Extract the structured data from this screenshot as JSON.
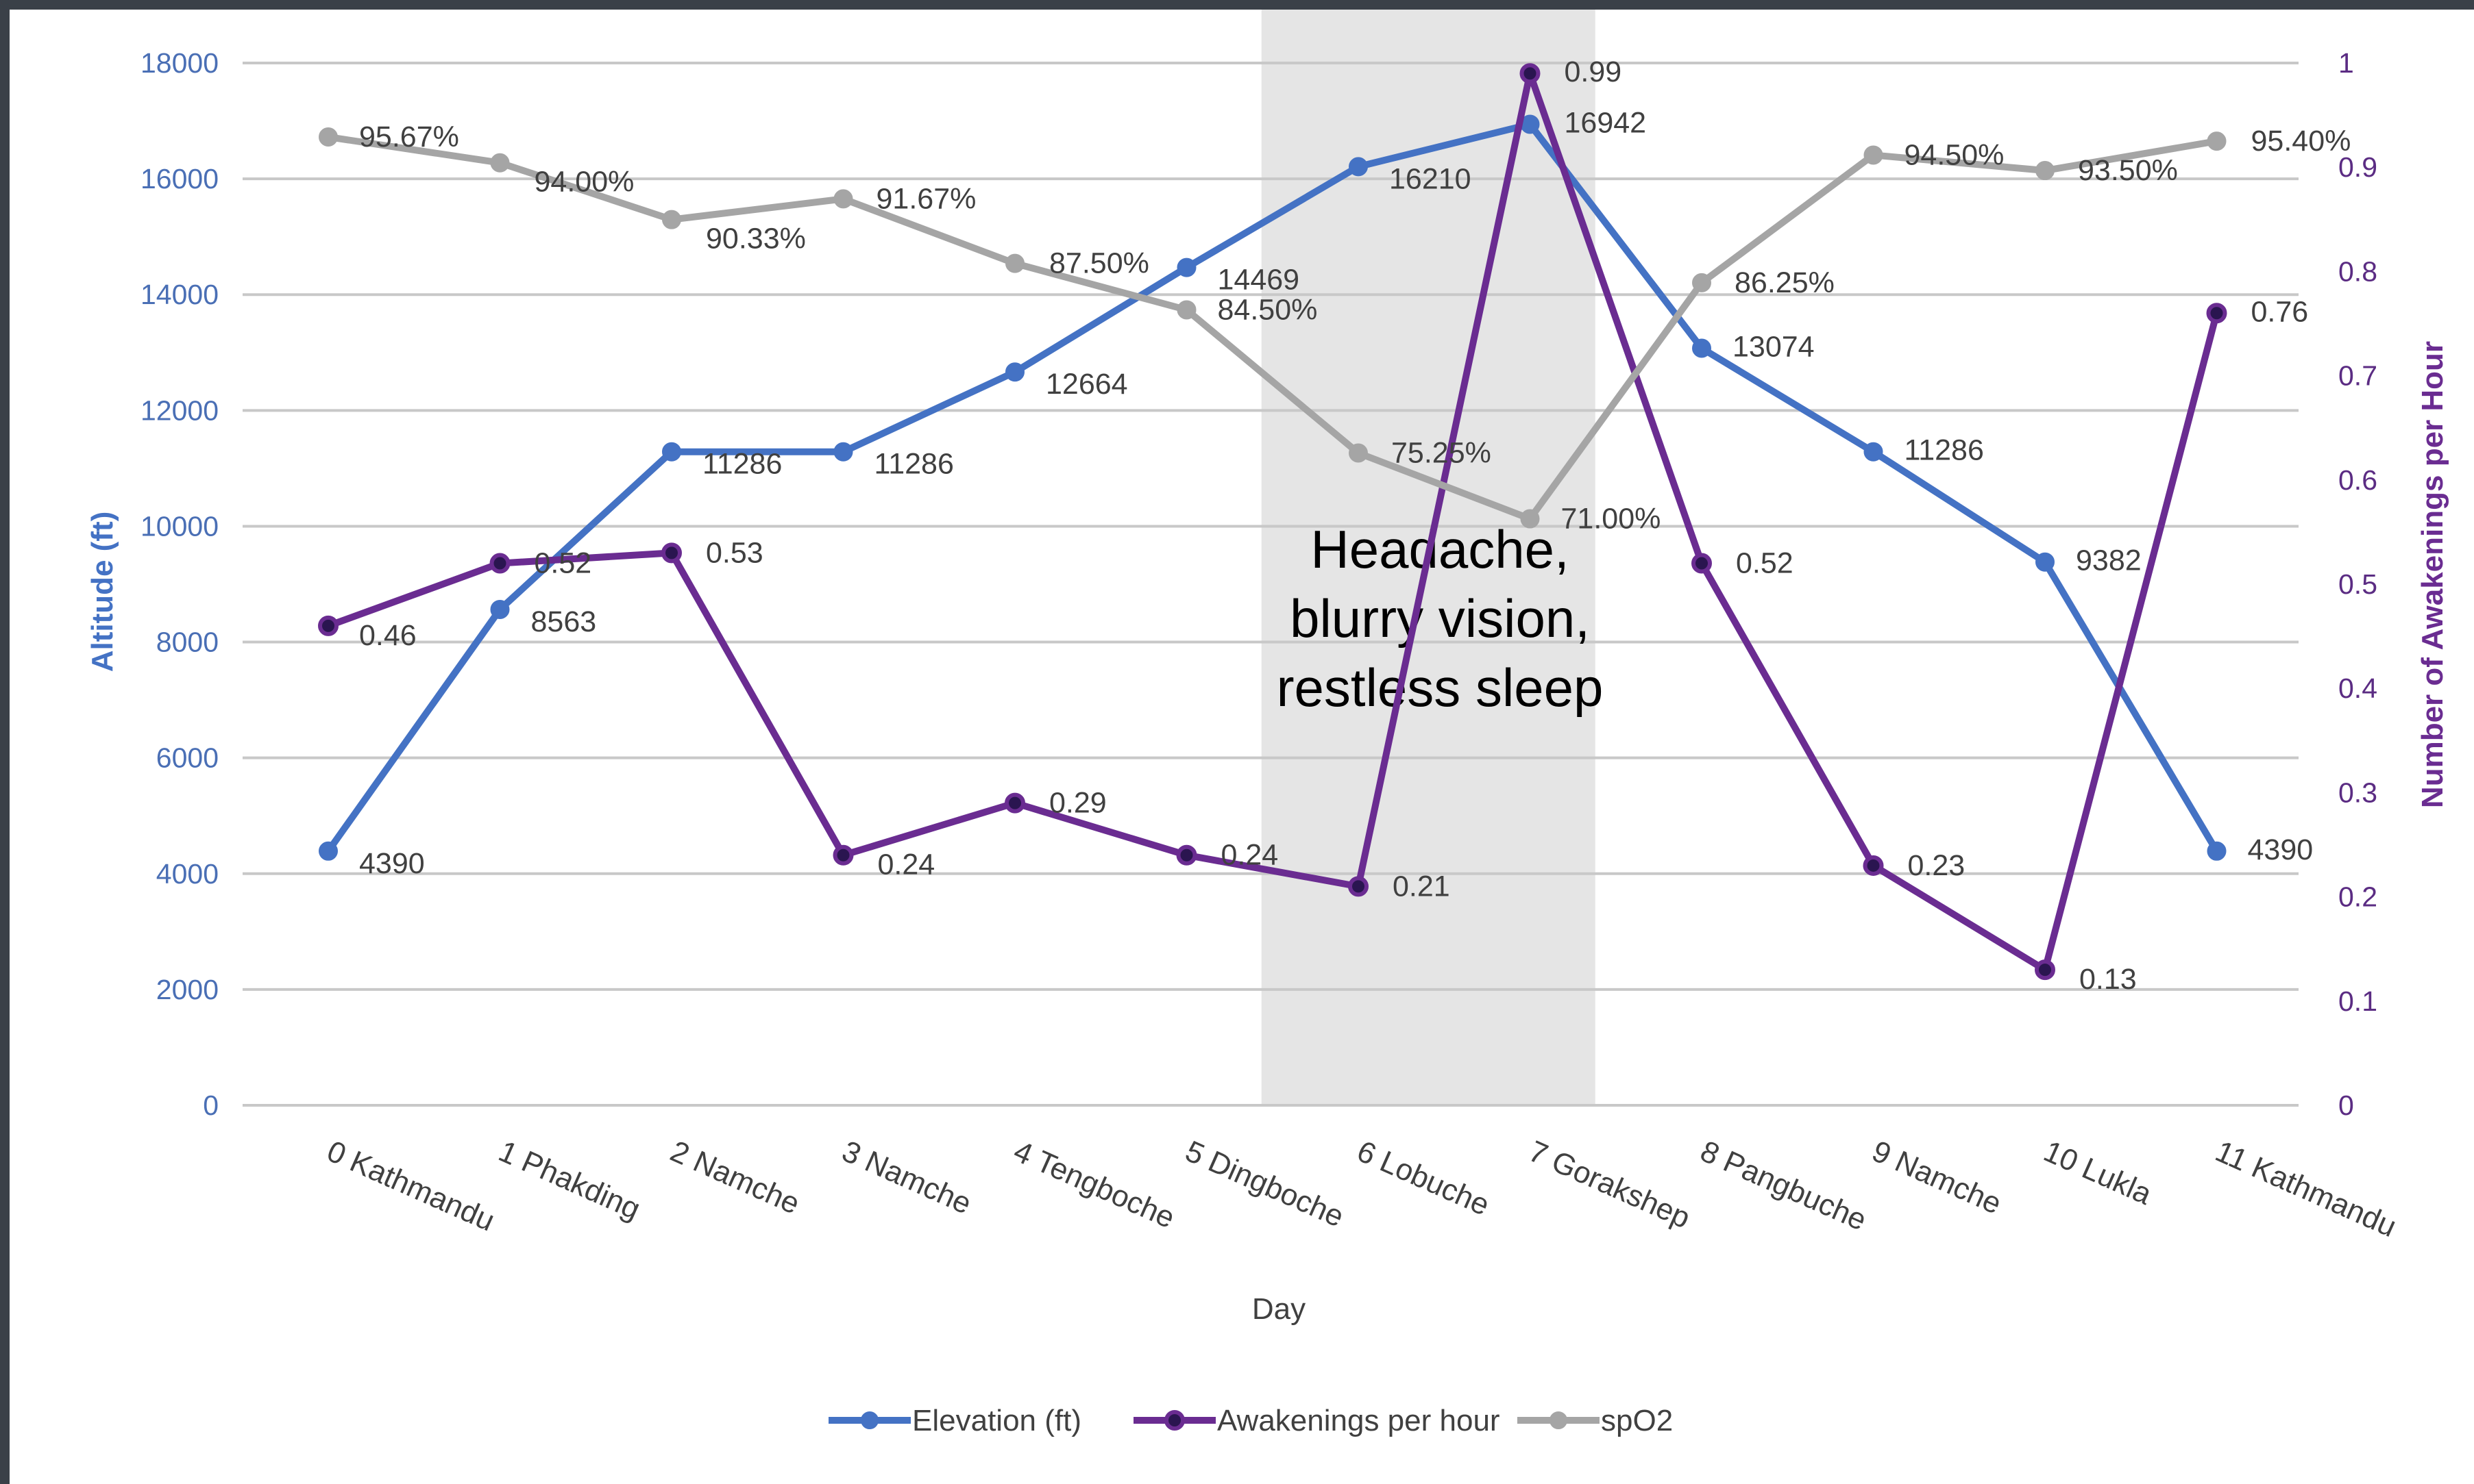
{
  "chart_data": {
    "type": "line",
    "categories": [
      "0 Kathmandu",
      "1 Phakding",
      "2 Namche",
      "3 Namche",
      "4 Tengboche",
      "5 Dingboche",
      "6 Lobuche",
      "7 Gorakshep",
      "8 Pangbuche",
      "9 Namche",
      "10 Lukla",
      "11 Kathmandu"
    ],
    "xlabel": "Day",
    "ylabel": "Altitude (ft)",
    "y2label": "Number of Awakenings per Hour",
    "ylim": [
      0,
      18000
    ],
    "y_ticks": [
      "0",
      "2000",
      "4000",
      "6000",
      "8000",
      "10000",
      "12000",
      "14000",
      "16000",
      "18000"
    ],
    "y2lim": [
      0,
      1
    ],
    "y2_ticks": [
      "0",
      "0.1",
      "0.2",
      "0.3",
      "0.4",
      "0.5",
      "0.6",
      "0.7",
      "0.8",
      "0.9",
      "1"
    ],
    "grid": true,
    "legend_position": "bottom",
    "highlight": {
      "from_category": "6 Lobuche",
      "to_category": "7 Gorakshep",
      "color": "#e5e5e5"
    },
    "annotation": {
      "lines": [
        "Headache,",
        "blurry vision,",
        "restless sleep"
      ]
    },
    "series": [
      {
        "name": "Elevation (ft)",
        "axis": "left",
        "color": "#4472c4",
        "values": [
          4390,
          8563,
          11286,
          11286,
          12664,
          14469,
          16210,
          16942,
          13074,
          11286,
          9382,
          4390
        ],
        "labels": [
          "4390",
          "8563",
          "11286",
          "11286",
          "12664",
          "14469",
          "16210",
          "16942",
          "13074",
          "11286",
          "9382",
          "4390"
        ]
      },
      {
        "name": "Awakenings per hour",
        "axis": "right",
        "color": "#6a2c91",
        "values": [
          0.46,
          0.52,
          0.53,
          0.24,
          0.29,
          0.24,
          0.21,
          0.99,
          0.52,
          0.23,
          0.13,
          0.76
        ],
        "labels": [
          "0.46",
          "0.52",
          "0.53",
          "0.24",
          "0.29",
          "0.24",
          "0.21",
          "0.99",
          "0.52",
          "0.23",
          "0.13",
          "0.76"
        ]
      },
      {
        "name": "spO2",
        "axis": "percent",
        "color": "#a5a5a5",
        "values": [
          95.67,
          94.0,
          90.33,
          91.67,
          87.5,
          84.5,
          75.25,
          71.0,
          86.25,
          94.5,
          93.5,
          95.4
        ],
        "labels": [
          "95.67%",
          "94.00%",
          "90.33%",
          "91.67%",
          "87.50%",
          "84.50%",
          "75.25%",
          "71.00%",
          "86.25%",
          "94.50%",
          "93.50%",
          "95.40%"
        ]
      }
    ]
  }
}
